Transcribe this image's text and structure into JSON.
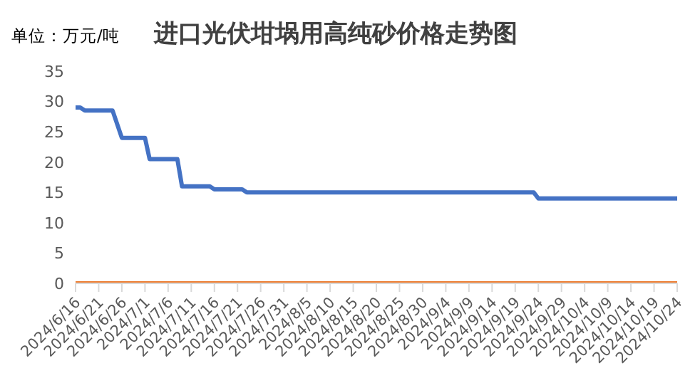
{
  "chart_data": {
    "type": "line",
    "title": "进口光伏坩埚用高纯砂价格走势图",
    "ylabel": "单位：万元/吨",
    "series": [
      {
        "color": "#4472c4",
        "x": [
          "2024-06-16",
          "2024-06-17",
          "2024-06-18",
          "2024-06-24",
          "2024-06-26",
          "2024-07-01",
          "2024-07-02",
          "2024-07-08",
          "2024-07-09",
          "2024-07-15",
          "2024-07-16",
          "2024-07-22",
          "2024-07-23",
          "2024-09-23",
          "2024-09-24",
          "2024-10-24"
        ],
        "values": [
          29,
          29,
          28.5,
          28.5,
          24,
          24,
          20.5,
          20.5,
          16,
          16,
          15.5,
          15.5,
          15,
          15,
          14,
          14
        ]
      },
      {
        "color": "#ed7d31",
        "x": [
          "2024-06-16",
          "2024-10-24"
        ],
        "values": [
          0,
          0
        ]
      }
    ],
    "xlim": [
      "2024-06-16",
      "2024-10-24"
    ],
    "xticks": [
      {
        "value": "2024-06-16",
        "label": "2024/6/16"
      },
      {
        "value": "2024-06-21",
        "label": "2024/6/21"
      },
      {
        "value": "2024-06-26",
        "label": "2024/6/26"
      },
      {
        "value": "2024-07-01",
        "label": "2024/7/1"
      },
      {
        "value": "2024-07-06",
        "label": "2024/7/6"
      },
      {
        "value": "2024-07-11",
        "label": "2024/7/11"
      },
      {
        "value": "2024-07-16",
        "label": "2024/7/16"
      },
      {
        "value": "2024-07-21",
        "label": "2024/7/21"
      },
      {
        "value": "2024-07-26",
        "label": "2024/7/26"
      },
      {
        "value": "2024-07-31",
        "label": "2024/7/31"
      },
      {
        "value": "2024-08-05",
        "label": "2024/8/5"
      },
      {
        "value": "2024-08-10",
        "label": "2024/8/10"
      },
      {
        "value": "2024-08-15",
        "label": "2024/8/15"
      },
      {
        "value": "2024-08-20",
        "label": "2024/8/20"
      },
      {
        "value": "2024-08-25",
        "label": "2024/8/25"
      },
      {
        "value": "2024-08-30",
        "label": "2024/8/30"
      },
      {
        "value": "2024-09-04",
        "label": "2024/9/4"
      },
      {
        "value": "2024-09-09",
        "label": "2024/9/9"
      },
      {
        "value": "2024-09-14",
        "label": "2024/9/14"
      },
      {
        "value": "2024-09-19",
        "label": "2024/9/19"
      },
      {
        "value": "2024-09-24",
        "label": "2024/9/24"
      },
      {
        "value": "2024-09-29",
        "label": "2024/9/29"
      },
      {
        "value": "2024-10-04",
        "label": "2024/10/4"
      },
      {
        "value": "2024-10-09",
        "label": "2024/10/9"
      },
      {
        "value": "2024-10-14",
        "label": "2024/10/14"
      },
      {
        "value": "2024-10-19",
        "label": "2024/10/19"
      },
      {
        "value": "2024-10-24",
        "label": "2024/10/24"
      }
    ],
    "ylim": [
      0,
      35
    ],
    "yticks": [
      0,
      5,
      10,
      15,
      20,
      25,
      30,
      35
    ],
    "grid": false,
    "legend": false,
    "marker": "none",
    "line_style": "solid"
  }
}
